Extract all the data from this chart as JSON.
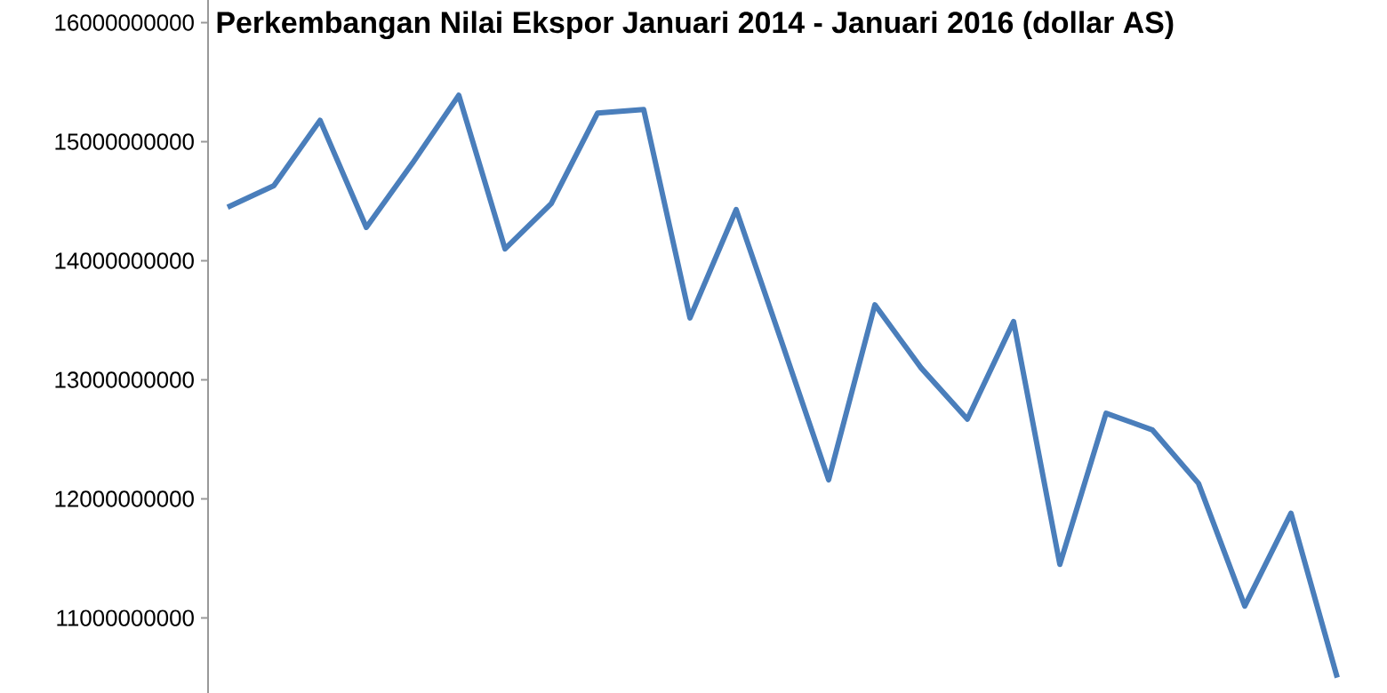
{
  "chart_data": {
    "type": "line",
    "title": "Perkembangan Nilai Ekspor  Januari 2014 - Januari 2016 (dollar AS)",
    "categories": [
      null,
      null,
      null,
      null,
      null,
      null,
      null,
      null,
      null,
      null,
      null,
      null,
      null,
      null,
      null,
      null,
      null,
      null,
      null,
      null,
      null,
      null,
      null,
      null,
      null
    ],
    "series": [
      {
        "color": "#4a7ebb",
        "values": [
          14450000000,
          14630000000,
          15180000000,
          14280000000,
          14820000000,
          15390000000,
          14100000000,
          14480000000,
          15240000000,
          15270000000,
          13520000000,
          14430000000,
          13300000000,
          12160000000,
          13630000000,
          13100000000,
          12670000000,
          13490000000,
          11450000000,
          12720000000,
          12580000000,
          12130000000,
          11100000000,
          11880000000,
          10500000000
        ]
      }
    ],
    "ylim": [
      10370000000,
      16190000000
    ],
    "yticks": [
      11000000000,
      12000000000,
      13000000000,
      14000000000,
      15000000000,
      16000000000
    ],
    "tick_labels": "y",
    "grid": false,
    "marker": "none",
    "line_style": "solid"
  }
}
